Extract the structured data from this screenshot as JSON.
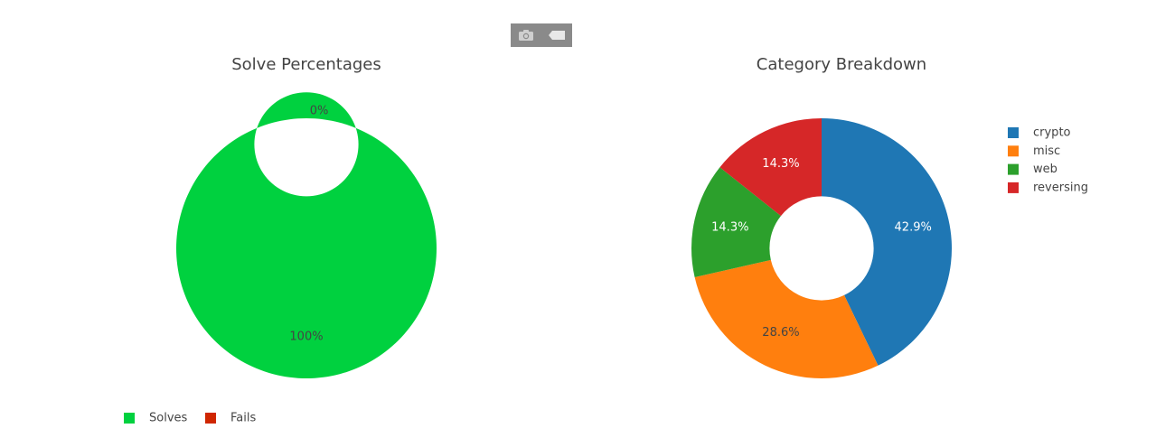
{
  "modebar": {
    "buttons": [
      {
        "name": "camera-icon"
      },
      {
        "name": "plotly-logo-icon"
      }
    ]
  },
  "chart_data": [
    {
      "type": "pie",
      "hole": 0.4,
      "title": "Solve Percentages",
      "labels": [
        "Solves",
        "Fails"
      ],
      "values": [
        100,
        0
      ],
      "slice_labels": [
        "100%",
        "0%"
      ],
      "colors": [
        "#00d13f",
        "#cf2600"
      ],
      "label_colors": [
        "#444444",
        "#444444"
      ],
      "legend": {
        "placement": "bottom-left",
        "orientation": "horizontal"
      }
    },
    {
      "type": "pie",
      "hole": 0.4,
      "title": "Category Breakdown",
      "labels": [
        "crypto",
        "misc",
        "web",
        "reversing"
      ],
      "values": [
        3,
        2,
        1,
        1
      ],
      "slice_labels": [
        "42.9%",
        "28.6%",
        "14.3%",
        "14.3%"
      ],
      "colors": [
        "#1f77b4",
        "#ff7f0e",
        "#2ca02c",
        "#d62728"
      ],
      "label_colors": [
        "#ffffff",
        "#444444",
        "#ffffff",
        "#ffffff"
      ],
      "legend": {
        "placement": "right",
        "orientation": "vertical"
      }
    }
  ]
}
